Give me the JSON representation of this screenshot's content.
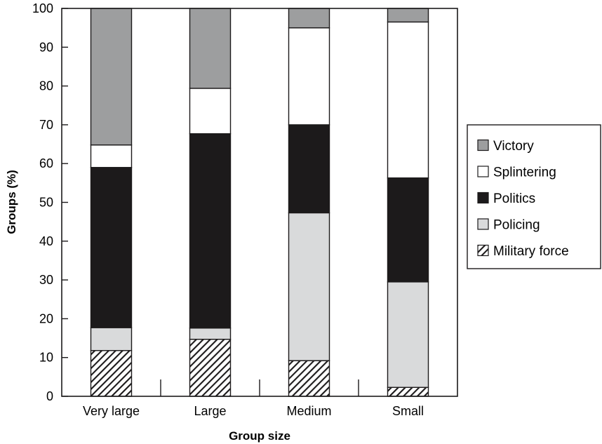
{
  "chart_data": {
    "type": "bar",
    "stacked": true,
    "title": "",
    "xlabel": "Group size",
    "ylabel": "Groups (%)",
    "ylim": [
      0,
      100
    ],
    "yticks": [
      0,
      10,
      20,
      30,
      40,
      50,
      60,
      70,
      80,
      90,
      100
    ],
    "categories": [
      "Very large",
      "Large",
      "Medium",
      "Small"
    ],
    "grid": false,
    "legend_position": "right",
    "series": [
      {
        "name": "Military force",
        "fill": "hatch",
        "values": [
          11.8,
          14.7,
          9.2,
          2.3
        ]
      },
      {
        "name": "Policing",
        "fill": "#d9dadb",
        "values": [
          5.9,
          2.9,
          38.1,
          27.2
        ]
      },
      {
        "name": "Politics",
        "fill": "#1c1a1b",
        "values": [
          41.3,
          50.1,
          22.7,
          26.8
        ]
      },
      {
        "name": "Splintering",
        "fill": "#ffffff",
        "values": [
          5.8,
          11.7,
          25.0,
          40.2
        ]
      },
      {
        "name": "Victory",
        "fill": "#9d9e9f",
        "values": [
          35.2,
          20.6,
          5.0,
          3.5
        ]
      }
    ],
    "legend_order": [
      "Victory",
      "Splintering",
      "Politics",
      "Policing",
      "Military force"
    ]
  }
}
